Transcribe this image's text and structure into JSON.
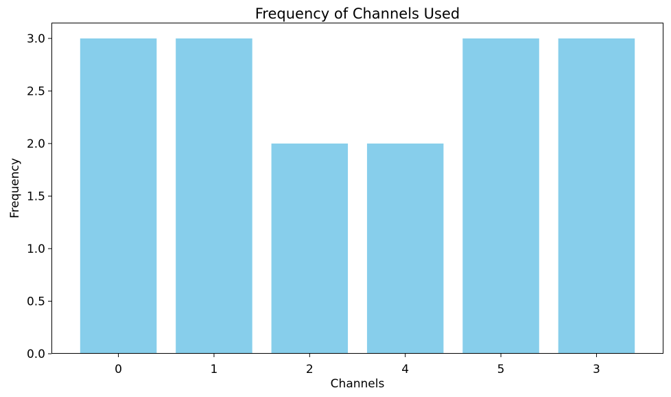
{
  "chart_data": {
    "type": "bar",
    "title": "Frequency of Channels Used",
    "xlabel": "Channels",
    "ylabel": "Frequency",
    "categories": [
      "0",
      "1",
      "2",
      "4",
      "5",
      "3"
    ],
    "values": [
      3,
      3,
      2,
      2,
      3,
      3
    ],
    "ylim": [
      0,
      3.15
    ],
    "yticks": [
      "0.0",
      "0.5",
      "1.0",
      "1.5",
      "2.0",
      "2.5",
      "3.0"
    ],
    "bar_color": "#87CEEB",
    "grid": false,
    "legend": "none"
  }
}
